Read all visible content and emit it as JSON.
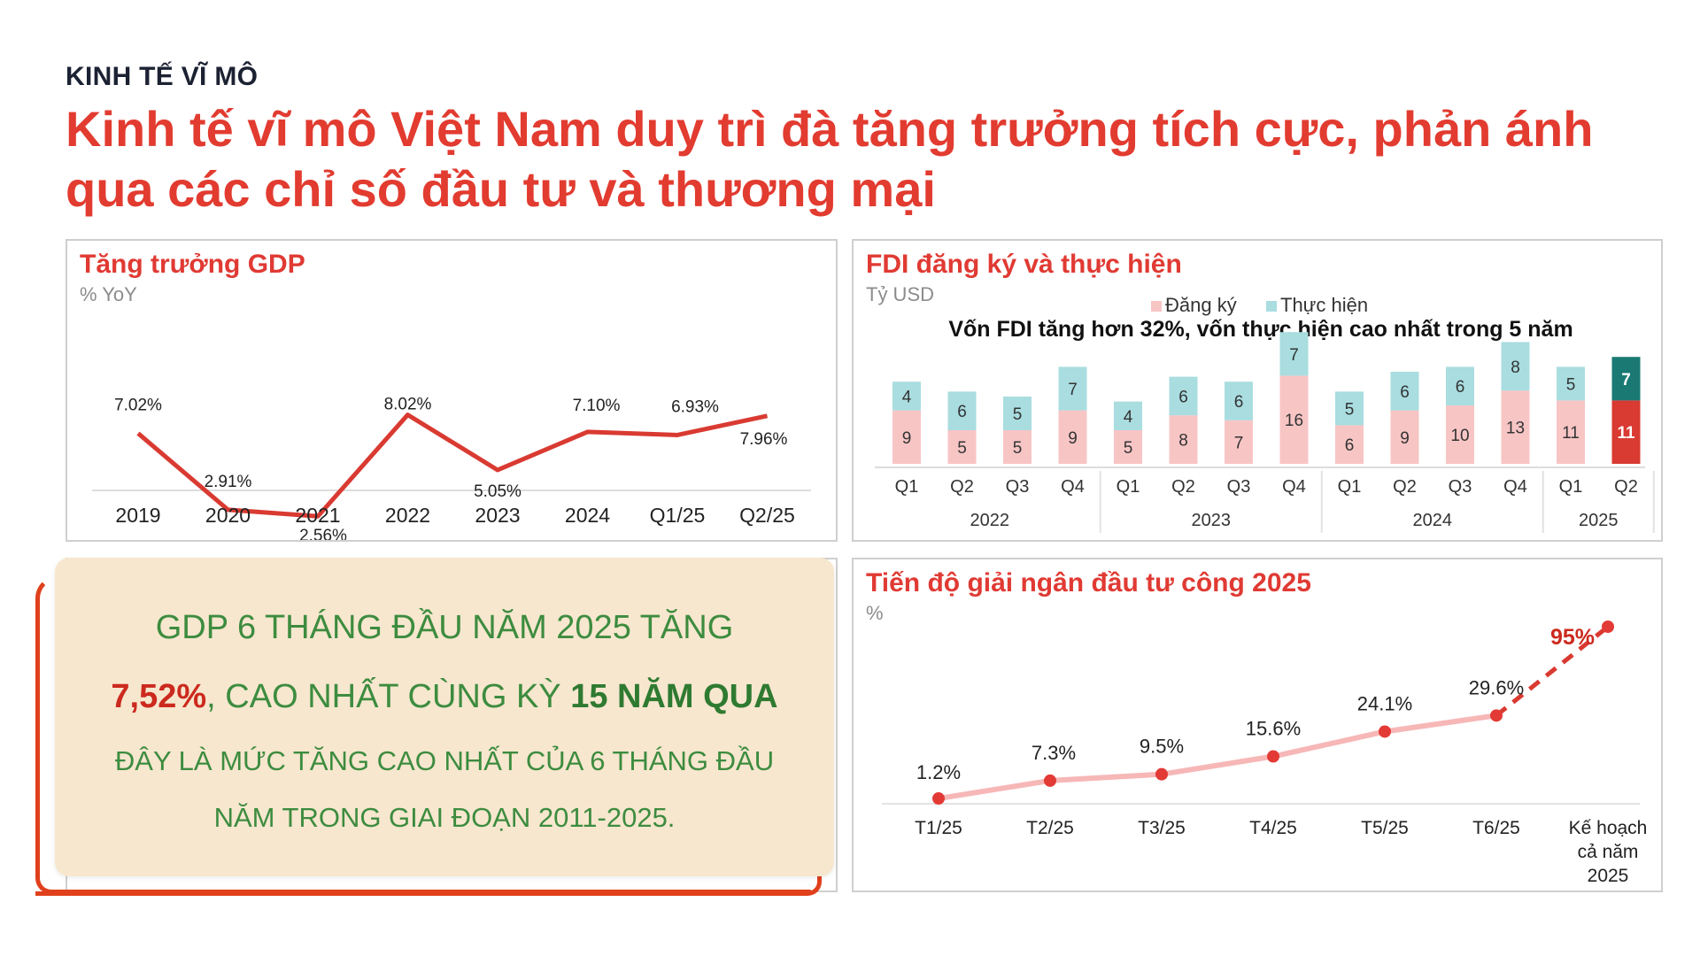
{
  "header": {
    "kicker": "KINH TẾ VĨ MÔ",
    "headline": "Kinh tế vĩ mô Việt Nam duy trì đà tăng trưởng tích cực, phản ánh qua các chỉ số đầu tư và thương mại"
  },
  "colors": {
    "accent": "#e23b30",
    "line": "#d93a31",
    "registered": "#f8c5c5",
    "implemented": "#a9dde0",
    "highlight_registered": "#d93a31",
    "highlight_implemented": "#1a7a73",
    "callout_bg": "#f7e7cf",
    "callout_text": "#3d8c3f"
  },
  "gdp_panel": {
    "title": "Tăng trưởng GDP",
    "unit": "% YoY"
  },
  "fdi_panel": {
    "title": "FDI đăng ký và thực hiện",
    "unit": "Tỷ USD",
    "annotation": "Vốn FDI tăng hơn 32%, vốn thực hiện cao nhất trong 5 năm"
  },
  "disb_panel": {
    "title": "Tiến độ giải ngân đầu tư công 2025",
    "unit": "%"
  },
  "callout": {
    "line1": "GDP 6 THÁNG ĐẦU NĂM 2025 TĂNG",
    "line2_red": "7,52%",
    "line2_mid": ", CAO NHẤT CÙNG KỲ ",
    "line2_bold": "15 NĂM QUA",
    "line3": "ĐÂY LÀ MỨC TĂNG CAO NHẤT CỦA 6 THÁNG ĐẦU",
    "line4": "NĂM TRONG GIAI ĐOẠN 2011-2025."
  },
  "chart_data": [
    {
      "type": "line",
      "title": "Tăng trưởng GDP",
      "ylabel": "% YoY",
      "categories": [
        "2019",
        "2020",
        "2021",
        "2022",
        "2023",
        "2024",
        "Q1/25",
        "Q2/25"
      ],
      "values": [
        7.02,
        2.91,
        2.56,
        8.02,
        5.05,
        7.1,
        6.93,
        7.96
      ],
      "labels": [
        "7.02%",
        "2.91%",
        "2.56%",
        "8.02%",
        "5.05%",
        "7.10%",
        "6.93%",
        "7.96%"
      ],
      "ylim": [
        0,
        9
      ]
    },
    {
      "type": "bar",
      "title": "FDI đăng ký và thực hiện",
      "ylabel": "Tỷ USD",
      "legend": [
        "Đăng ký",
        "Thực hiện"
      ],
      "categories": [
        "Q1",
        "Q2",
        "Q3",
        "Q4",
        "Q1",
        "Q2",
        "Q3",
        "Q4",
        "Q1",
        "Q2",
        "Q3",
        "Q4",
        "Q1",
        "Q2"
      ],
      "groups": [
        {
          "label": "2022",
          "count": 4
        },
        {
          "label": "2023",
          "count": 4
        },
        {
          "label": "2024",
          "count": 4
        },
        {
          "label": "2025",
          "count": 2
        }
      ],
      "series": [
        {
          "name": "Đăng ký",
          "values": [
            9,
            5,
            5,
            9,
            5,
            8,
            7,
            16,
            6,
            9,
            10,
            13,
            11,
            11
          ]
        },
        {
          "name": "Thực hiện",
          "values": [
            4,
            6,
            5,
            7,
            4,
            6,
            6,
            7,
            5,
            6,
            6,
            8,
            5,
            7
          ]
        }
      ],
      "annotation": "Vốn FDI tăng hơn 32%, vốn thực hiện cao nhất trong 5 năm"
    },
    {
      "type": "line",
      "title": "Tiến độ giải ngân đầu tư công 2025",
      "ylabel": "%",
      "categories": [
        "T1/25",
        "T2/25",
        "T3/25",
        "T4/25",
        "T5/25",
        "T6/25",
        "Kế hoạch cả năm 2025"
      ],
      "values": [
        1.2,
        7.3,
        9.5,
        15.6,
        24.1,
        29.6,
        95
      ],
      "labels": [
        "1.2%",
        "7.3%",
        "9.5%",
        "15.6%",
        "24.1%",
        "29.6%",
        "95%"
      ]
    }
  ]
}
